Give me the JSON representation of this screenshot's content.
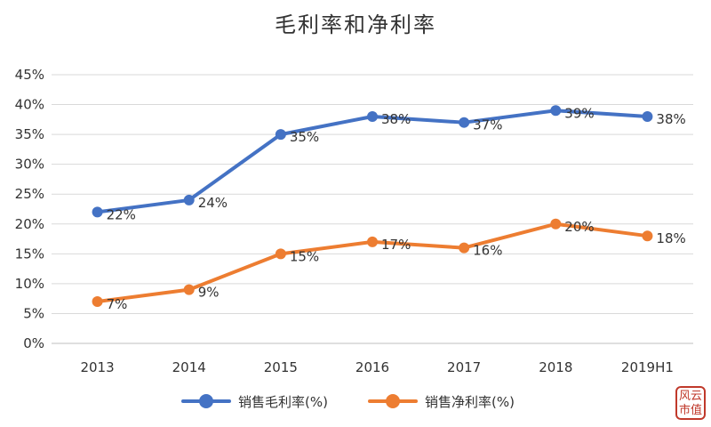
{
  "chart_data": {
    "type": "line",
    "title": "毛利率和净利率",
    "categories": [
      "2013",
      "2014",
      "2015",
      "2016",
      "2017",
      "2018",
      "2019H1"
    ],
    "ylim": [
      0,
      45
    ],
    "yticks": [
      "0%",
      "5%",
      "10%",
      "15%",
      "20%",
      "25%",
      "30%",
      "35%",
      "40%",
      "45%"
    ],
    "grid": true,
    "legend_position": "bottom",
    "series": [
      {
        "name": "销售毛利率(%)",
        "color": "#4472C4",
        "values": [
          22,
          24,
          35,
          38,
          37,
          39,
          38
        ],
        "labels": [
          "22%",
          "24%",
          "35%",
          "38%",
          "37%",
          "39%",
          "38%"
        ]
      },
      {
        "name": "销售净利率(%)",
        "color": "#ED7D31",
        "values": [
          7,
          9,
          15,
          17,
          16,
          20,
          18
        ],
        "labels": [
          "7%",
          "9%",
          "15%",
          "17%",
          "16%",
          "20%",
          "18%"
        ]
      }
    ]
  },
  "logo": {
    "text": "风云 市值"
  }
}
